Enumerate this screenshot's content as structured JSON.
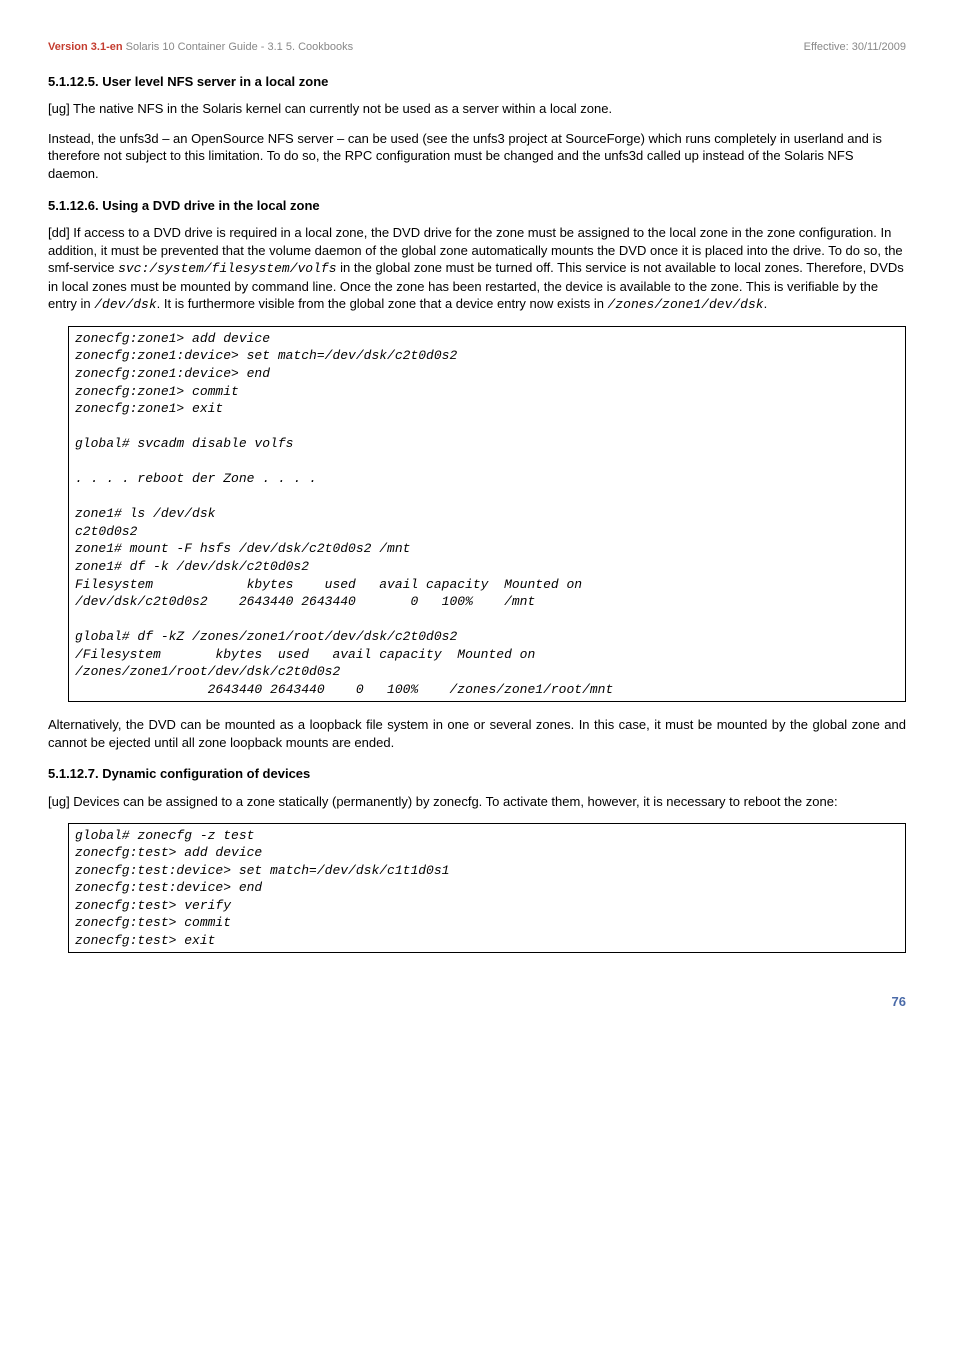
{
  "header": {
    "version": "Version 3.1-en",
    "title_gray": "Solaris 10 Container Guide - 3.1   5. Cookbooks",
    "effective": "Effective: 30/11/2009"
  },
  "s1": {
    "title": "5.1.12.5. User level NFS server in a local zone",
    "p1": "[ug] The native NFS in the Solaris kernel can currently not be used as a server within a local zone.",
    "p2": "Instead, the unfs3d – an OpenSource NFS server – can be used (see the unfs3 project at SourceForge) which runs completely in userland and is therefore not subject to this limitation. To do so, the RPC configuration must be changed and the unfs3d called up instead of the Solaris NFS daemon."
  },
  "s2": {
    "title": "5.1.12.6. Using a DVD drive in the local zone",
    "p1a": "[dd] If access to a DVD drive is required in a local zone, the DVD drive for the zone must be assigned to the local zone in the zone configuration. In addition, it must be prevented that the volume daemon of the global zone automatically mounts the DVD once it is placed into the drive. To do so, the smf-service ",
    "p1_code1": "svc:/system/filesystem/volfs",
    "p1b": " in the global zone must be turned off. This service is not available to local zones. Therefore, DVDs in local zones must be mounted by command line. Once the zone has been restarted, the device is available to the zone. This is verifiable by the entry in ",
    "p1_code2": "/dev/dsk",
    "p1c": ". It is furthermore visible from the global zone that a device entry now exists in ",
    "p1_code3": "/zones/zone1/dev/dsk",
    "p1d": ".",
    "code": "zonecfg:zone1> add device\nzonecfg:zone1:device> set match=/dev/dsk/c2t0d0s2\nzonecfg:zone1:device> end\nzonecfg:zone1> commit\nzonecfg:zone1> exit\n\nglobal# svcadm disable volfs\n\n. . . . reboot der Zone . . . .\n\nzone1# ls /dev/dsk\nc2t0d0s2\nzone1# mount -F hsfs /dev/dsk/c2t0d0s2 /mnt\nzone1# df -k /dev/dsk/c2t0d0s2\nFilesystem            kbytes    used   avail capacity  Mounted on\n/dev/dsk/c2t0d0s2    2643440 2643440       0   100%    /mnt\n\nglobal# df -kZ /zones/zone1/root/dev/dsk/c2t0d0s2\n/Filesystem       kbytes  used   avail capacity  Mounted on\n/zones/zone1/root/dev/dsk/c2t0d0s2\n                 2643440 2643440    0   100%    /zones/zone1/root/mnt",
    "p2": "Alternatively, the DVD can be mounted as a loopback file system in one or several zones. In this case, it must be mounted by the global zone and cannot be ejected until all zone loopback mounts are ended."
  },
  "s3": {
    "title": "5.1.12.7. Dynamic configuration of devices",
    "p1": "[ug] Devices can be assigned to a zone statically (permanently) by zonecfg. To activate them, however, it is necessary to reboot the zone:",
    "code": "global# zonecfg -z test\nzonecfg:test> add device\nzonecfg:test:device> set match=/dev/dsk/c1t1d0s1\nzonecfg:test:device> end\nzonecfg:test> verify\nzonecfg:test> commit\nzonecfg:test> exit"
  },
  "page": "76"
}
